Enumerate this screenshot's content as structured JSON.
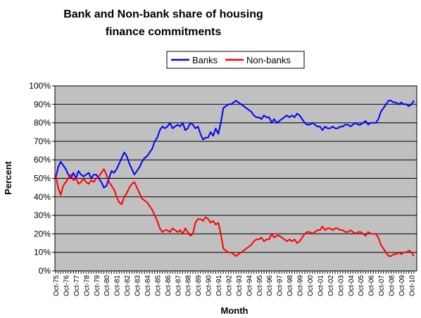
{
  "chart_data": {
    "type": "line",
    "title": "Bank and Non-bank share of housing finance commitments",
    "x_label": "Month",
    "y_label": "Percent",
    "categories": [
      "Oct-75",
      null,
      null,
      null,
      "Oct-76",
      null,
      null,
      null,
      "Oct-77",
      null,
      null,
      null,
      "Oct-78",
      null,
      null,
      null,
      "Oct-79",
      null,
      null,
      null,
      "Oct-80",
      null,
      null,
      null,
      "Oct-81",
      null,
      null,
      null,
      "Oct-82",
      null,
      null,
      null,
      "Oct-83",
      null,
      null,
      null,
      "Oct-84",
      null,
      null,
      null,
      "Oct-85",
      null,
      null,
      null,
      "Oct-86",
      null,
      null,
      null,
      "Oct-87",
      null,
      null,
      null,
      "Oct-88",
      null,
      null,
      null,
      "Oct-89",
      null,
      null,
      null,
      "Oct-90",
      null,
      null,
      null,
      "Oct-91",
      null,
      null,
      null,
      "Oct-92",
      null,
      null,
      null,
      "Oct-93",
      null,
      null,
      null,
      "Oct-94",
      null,
      null,
      null,
      "Oct-95",
      null,
      null,
      null,
      "Oct-96",
      null,
      null,
      null,
      "Oct-97",
      null,
      null,
      null,
      "Oct-98",
      null,
      null,
      null,
      "Oct-99",
      null,
      null,
      null,
      "Oct-00",
      null,
      null,
      null,
      "Oct-01",
      null,
      null,
      null,
      "Oct-02",
      null,
      null,
      null,
      "Oct-03",
      null,
      null,
      null,
      "Oct-04",
      null,
      null,
      null,
      "Oct-05",
      null,
      null,
      null,
      "Oct-06",
      null,
      null,
      null,
      "Oct-07",
      null,
      null,
      null,
      "Oct-08",
      null,
      null,
      null,
      "Oct-09",
      null,
      null,
      null,
      "Oct-10",
      null
    ],
    "series": [
      {
        "name": "Banks",
        "color": "#0000ff",
        "values": [
          50,
          56,
          59,
          57,
          55,
          52,
          50,
          53,
          50,
          54,
          52,
          51,
          52,
          53,
          50,
          52,
          52,
          50,
          48,
          45,
          46,
          50,
          54,
          53,
          55,
          58,
          61,
          64,
          62,
          58,
          55,
          52,
          54,
          56,
          59,
          61,
          62,
          64,
          66,
          70,
          72,
          76,
          78,
          77,
          78,
          80,
          77,
          78,
          79,
          78,
          80,
          76,
          77,
          80,
          79,
          77,
          78,
          74,
          71,
          72,
          72,
          75,
          73,
          77,
          74,
          80,
          88,
          89,
          90,
          90,
          91,
          92,
          91,
          90,
          89,
          88,
          87,
          86,
          84,
          83,
          83,
          82,
          84,
          83,
          83,
          80,
          82,
          80,
          81,
          82,
          83,
          84,
          83,
          84,
          83,
          85,
          84,
          82,
          80,
          79,
          79,
          80,
          79,
          78,
          78,
          76,
          78,
          77,
          77,
          78,
          77,
          77,
          78,
          78,
          79,
          79,
          78,
          79,
          80,
          79,
          79,
          80,
          81,
          79,
          80,
          80,
          80,
          82,
          86,
          88,
          90,
          92,
          92,
          91,
          91,
          90,
          91,
          90,
          90,
          89,
          90,
          92
        ]
      },
      {
        "name": "Non-banks",
        "color": "#ff0000",
        "values": [
          52,
          45,
          41,
          46,
          48,
          50,
          52,
          49,
          50,
          47,
          48,
          50,
          48,
          47,
          49,
          48,
          50,
          51,
          53,
          55,
          52,
          48,
          46,
          44,
          40,
          37,
          36,
          40,
          42,
          45,
          47,
          48,
          45,
          42,
          39,
          38,
          37,
          35,
          33,
          30,
          27,
          23,
          21,
          22,
          22,
          21,
          23,
          22,
          21,
          22,
          20,
          23,
          21,
          19,
          20,
          26,
          28,
          28,
          27,
          29,
          28,
          26,
          27,
          25,
          26,
          20,
          12,
          11,
          10,
          10,
          9,
          8,
          9,
          10,
          11,
          12,
          13,
          14,
          16,
          17,
          17,
          18,
          16,
          17,
          17,
          20,
          18,
          19,
          19,
          18,
          17,
          16,
          17,
          16,
          17,
          15,
          16,
          18,
          20,
          21,
          21,
          20,
          21,
          22,
          22,
          24,
          22,
          23,
          23,
          22,
          23,
          23,
          22,
          22,
          21,
          21,
          22,
          21,
          20,
          21,
          21,
          20,
          19,
          21,
          20,
          20,
          20,
          18,
          14,
          12,
          10,
          8,
          8,
          9,
          9,
          10,
          9,
          10,
          10,
          11,
          10,
          8
        ]
      }
    ],
    "ylim": [
      0,
      100
    ],
    "yticks": [
      {
        "value": 0,
        "label": "0%"
      },
      {
        "value": 10,
        "label": "10%"
      },
      {
        "value": 20,
        "label": "20%"
      },
      {
        "value": 30,
        "label": "30%"
      },
      {
        "value": 40,
        "label": "40%"
      },
      {
        "value": 50,
        "label": "50%"
      },
      {
        "value": 60,
        "label": "60%"
      },
      {
        "value": 70,
        "label": "70%"
      },
      {
        "value": 80,
        "label": "80%"
      },
      {
        "value": 90,
        "label": "90%"
      },
      {
        "value": 100,
        "label": "100%"
      }
    ],
    "grid": true,
    "legend": "top",
    "plot_background": "#c0c0c0"
  }
}
